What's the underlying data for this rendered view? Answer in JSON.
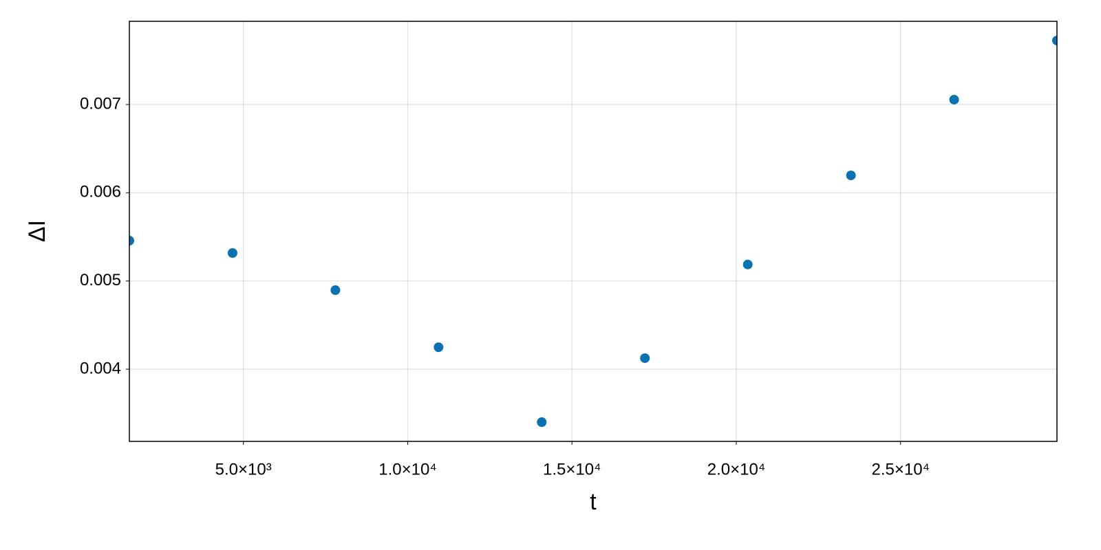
{
  "chart_data": {
    "type": "scatter",
    "x_label": "t",
    "y_label": "ΔI",
    "x": [
      1530,
      4670,
      7800,
      10940,
      14080,
      17220,
      20350,
      23490,
      26630,
      29760
    ],
    "series": [
      {
        "color": "#0972b2",
        "values": [
          0.005457,
          0.005317,
          0.004896,
          0.004249,
          0.0034,
          0.004125,
          0.005187,
          0.006197,
          0.007055,
          0.007725
        ]
      }
    ],
    "xlim": [
      1530,
      29760
    ],
    "ylim": [
      0.003182,
      0.007943
    ],
    "xticks": [
      {
        "value": 5000,
        "label": "5.0×10³"
      },
      {
        "value": 10000,
        "label": "1.0×10⁴"
      },
      {
        "value": 15000,
        "label": "1.5×10⁴"
      },
      {
        "value": 20000,
        "label": "2.0×10⁴"
      },
      {
        "value": 25000,
        "label": "2.5×10⁴"
      }
    ],
    "yticks": [
      0.004,
      0.005,
      0.006,
      0.007
    ],
    "grid": true
  }
}
